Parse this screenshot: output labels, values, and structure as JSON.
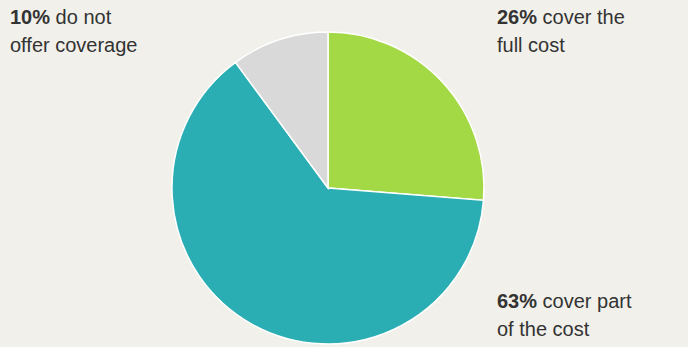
{
  "chart_data": {
    "type": "pie",
    "labels": [
      "cover the full cost",
      "cover part of the cost",
      "do not offer coverage"
    ],
    "values": [
      26,
      63,
      10
    ],
    "value_labels": [
      "26%",
      "63%",
      "10%"
    ],
    "colors": [
      "#a3d944",
      "#2aaeb3",
      "#d9d9d9"
    ],
    "data_labels": true
  }
}
